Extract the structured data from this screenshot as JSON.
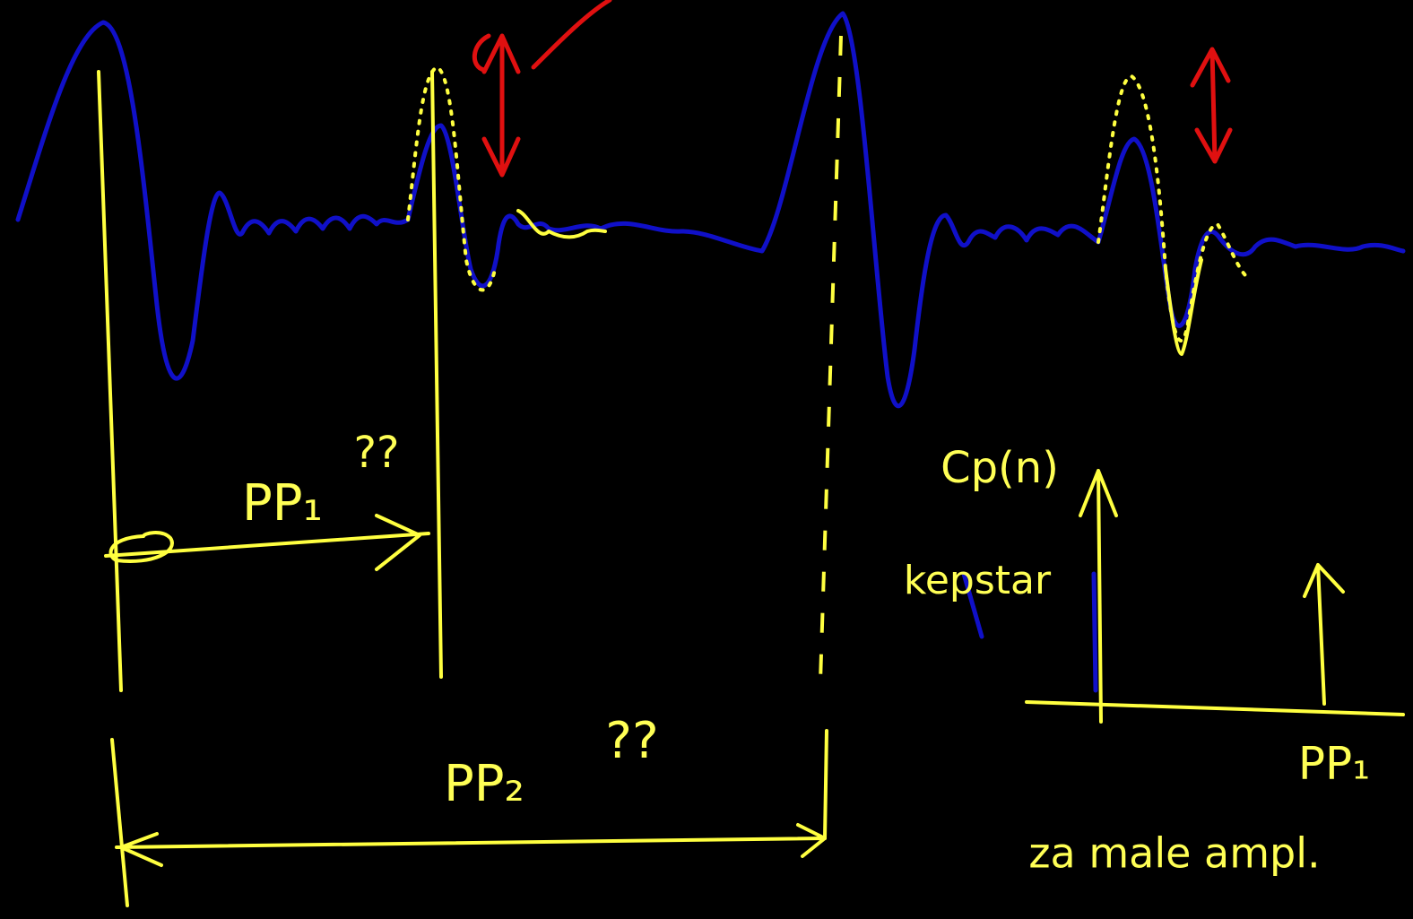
{
  "annotations": {
    "question_1": "??",
    "interval_1": "PP₁",
    "interval_2": "PP₂",
    "question_2": "??",
    "cepstrum_axis": "Cp(n)",
    "cepstrum_label": "kepstar",
    "cepstrum_peak": "PP₁",
    "note": "za male ampl."
  }
}
